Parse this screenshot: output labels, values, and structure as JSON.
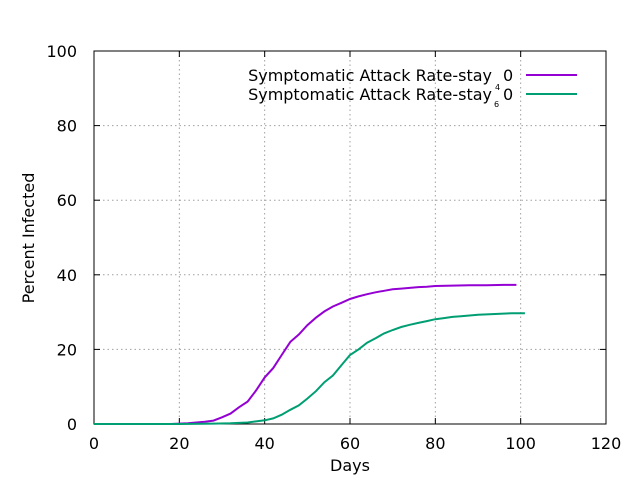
{
  "chart_data": {
    "type": "line",
    "xlabel": "Days",
    "ylabel": "Percent Infected",
    "xlim": [
      0,
      120
    ],
    "ylim": [
      0,
      100
    ],
    "x_ticks": [
      "0",
      "20",
      "40",
      "60",
      "80",
      "100",
      "120"
    ],
    "y_ticks": [
      "0",
      "20",
      "40",
      "60",
      "80",
      "100"
    ],
    "grid": true,
    "legend_position": "top-right",
    "series": [
      {
        "name": "Symptomatic Attack Rate-stay 0",
        "legend_text": "Symptomatic Attack Rate-stay",
        "legend_suffix": "0",
        "legend_sup": "",
        "legend_sub": "",
        "color": "#9400d3",
        "points": [
          [
            0,
            0
          ],
          [
            10,
            0
          ],
          [
            18,
            0
          ],
          [
            20,
            0.1
          ],
          [
            22,
            0.2
          ],
          [
            24,
            0.4
          ],
          [
            26,
            0.6
          ],
          [
            28,
            0.9
          ],
          [
            30,
            1.8
          ],
          [
            32,
            2.8
          ],
          [
            34,
            4.5
          ],
          [
            36,
            6
          ],
          [
            38,
            9
          ],
          [
            40,
            12.5
          ],
          [
            42,
            15
          ],
          [
            44,
            18.5
          ],
          [
            46,
            22
          ],
          [
            48,
            24
          ],
          [
            50,
            26.5
          ],
          [
            52,
            28.5
          ],
          [
            54,
            30.2
          ],
          [
            56,
            31.5
          ],
          [
            58,
            32.5
          ],
          [
            60,
            33.5
          ],
          [
            62,
            34.2
          ],
          [
            64,
            34.8
          ],
          [
            66,
            35.3
          ],
          [
            68,
            35.7
          ],
          [
            70,
            36.1
          ],
          [
            72,
            36.3
          ],
          [
            74,
            36.5
          ],
          [
            76,
            36.7
          ],
          [
            78,
            36.8
          ],
          [
            80,
            37
          ],
          [
            84,
            37.1
          ],
          [
            88,
            37.2
          ],
          [
            92,
            37.2
          ],
          [
            96,
            37.3
          ],
          [
            99,
            37.3
          ]
        ]
      },
      {
        "name": "Symptomatic Attack Rate-stay 46 0",
        "legend_text": "Symptomatic Attack Rate-stay",
        "legend_suffix": "0",
        "legend_sup": "4",
        "legend_sub": "6",
        "color": "#009e73",
        "points": [
          [
            0,
            0
          ],
          [
            20,
            0
          ],
          [
            28,
            0.1
          ],
          [
            32,
            0.2
          ],
          [
            36,
            0.4
          ],
          [
            38,
            0.7
          ],
          [
            40,
            1
          ],
          [
            42,
            1.5
          ],
          [
            44,
            2.5
          ],
          [
            46,
            3.8
          ],
          [
            48,
            5
          ],
          [
            50,
            6.8
          ],
          [
            52,
            8.8
          ],
          [
            54,
            11.2
          ],
          [
            56,
            13
          ],
          [
            58,
            15.8
          ],
          [
            60,
            18.5
          ],
          [
            62,
            20
          ],
          [
            64,
            21.8
          ],
          [
            66,
            23
          ],
          [
            68,
            24.3
          ],
          [
            70,
            25.2
          ],
          [
            72,
            26
          ],
          [
            74,
            26.6
          ],
          [
            76,
            27.1
          ],
          [
            78,
            27.6
          ],
          [
            80,
            28.1
          ],
          [
            82,
            28.4
          ],
          [
            84,
            28.7
          ],
          [
            86,
            28.9
          ],
          [
            88,
            29.1
          ],
          [
            90,
            29.3
          ],
          [
            94,
            29.5
          ],
          [
            98,
            29.7
          ],
          [
            101,
            29.7
          ]
        ]
      }
    ]
  }
}
